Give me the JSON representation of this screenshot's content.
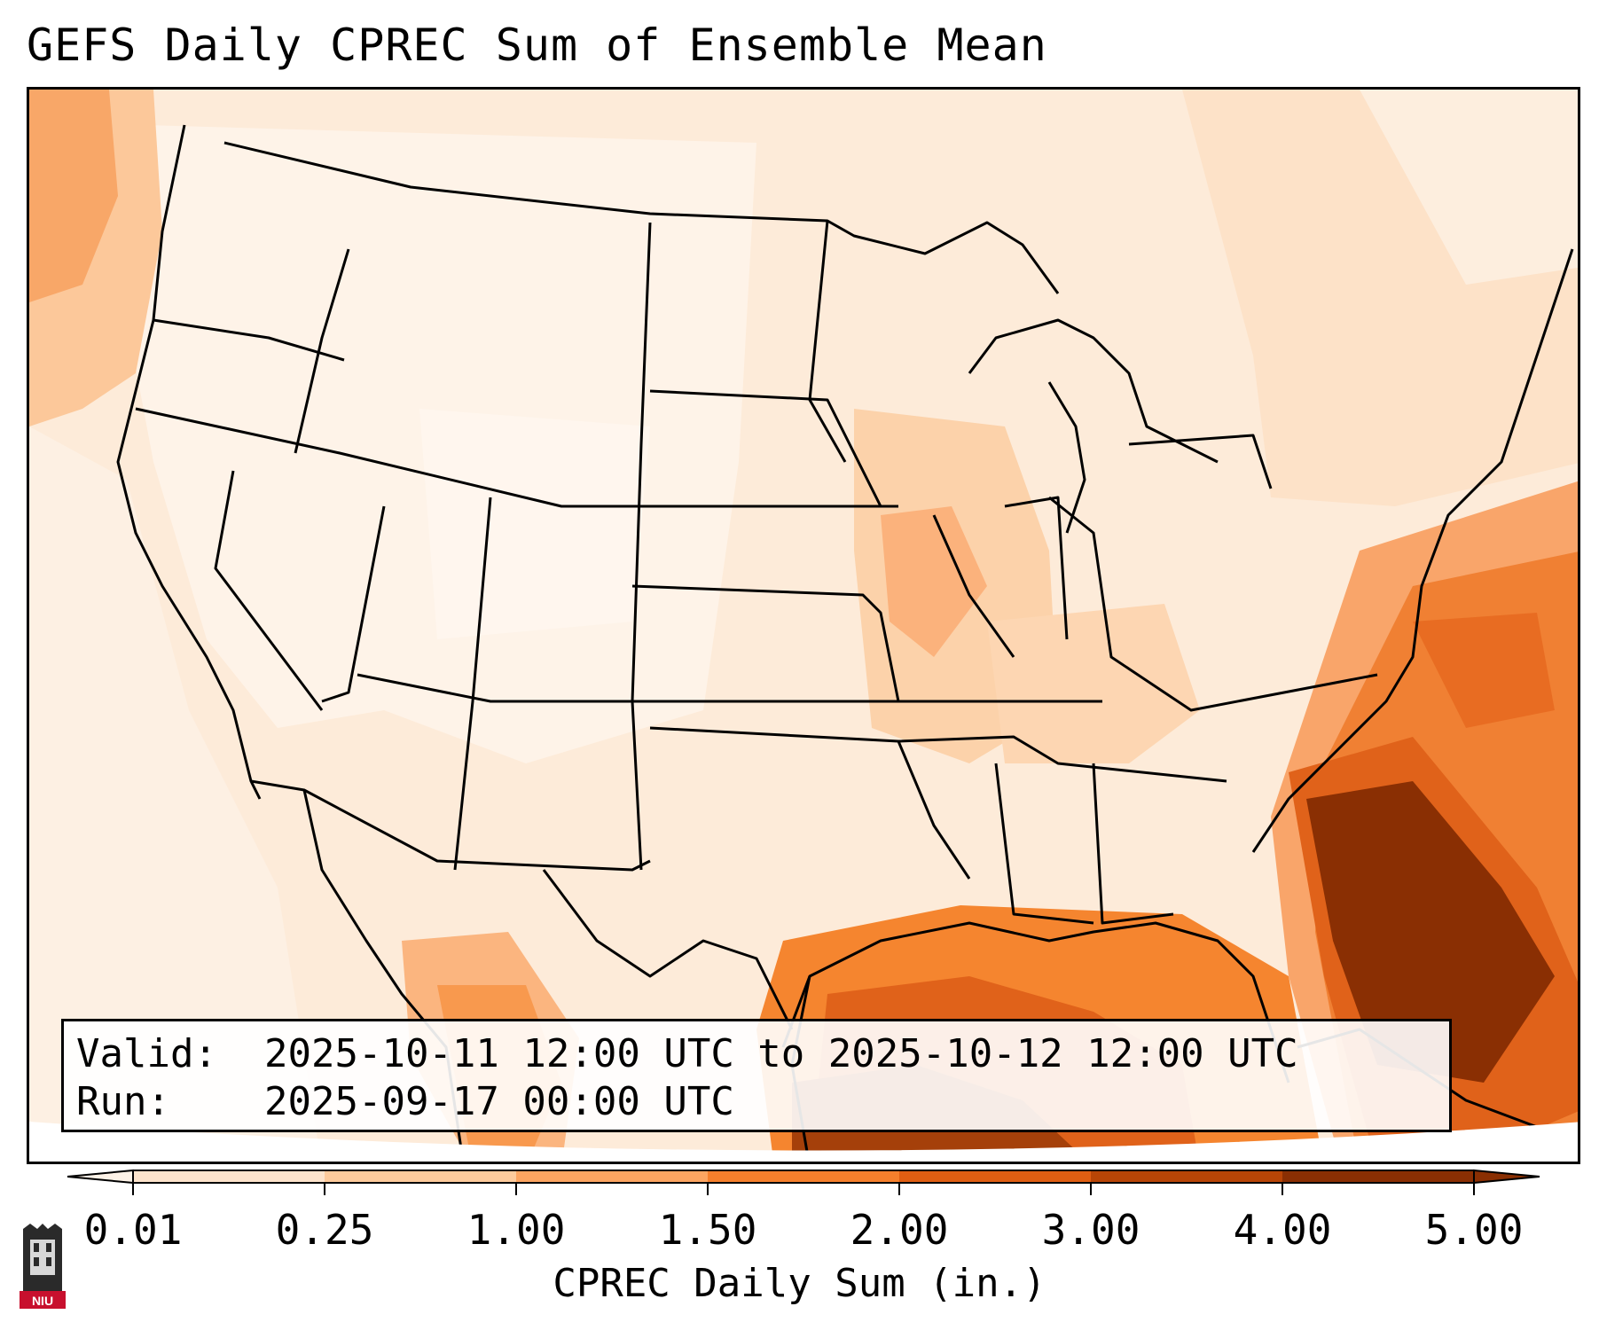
{
  "title": "GEFS Daily CPREC Sum of Ensemble Mean",
  "info": {
    "valid_label": "Valid:",
    "valid_value": "2025-10-11 12:00 UTC to 2025-10-12 12:00 UTC",
    "run_label": "Run:",
    "run_value": "2025-09-17 00:00 UTC"
  },
  "colorbar": {
    "label": "CPREC Daily Sum (in.)",
    "ticks": [
      "0.01",
      "0.25",
      "1.00",
      "1.50",
      "2.00",
      "3.00",
      "4.00",
      "5.00"
    ],
    "colors": [
      "#fef3e8",
      "#fde4cc",
      "#fdcb9c",
      "#fca561",
      "#f57f2c",
      "#e05e12",
      "#b84506",
      "#8a2f03"
    ],
    "extend": "both"
  },
  "logo": {
    "text": "NIU",
    "color": "#c8102e"
  },
  "legend_colors": {
    "land_low": "#fef3e8",
    "ocean_heavy": "#8a2f03",
    "borders": "#000000"
  }
}
